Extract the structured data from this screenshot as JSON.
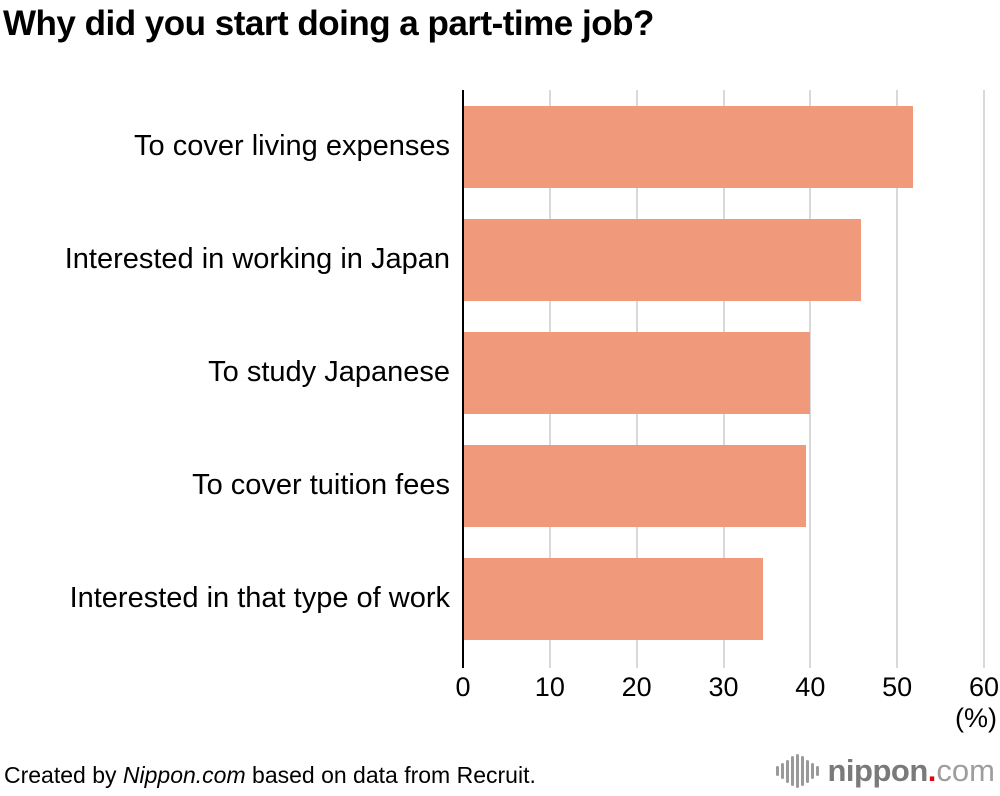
{
  "title": "Why did you start doing a part-time job?",
  "chart_data": {
    "type": "bar",
    "orientation": "horizontal",
    "title": "Why did you start doing a part-time job?",
    "categories": [
      "To cover living expenses",
      "Interested in working in Japan",
      "To study Japanese",
      "To cover tuition fees",
      "Interested in that type of work"
    ],
    "values": [
      51.8,
      45.8,
      40.0,
      39.5,
      34.5
    ],
    "xlabel": "(%)",
    "ylabel": "",
    "xlim": [
      0,
      60
    ],
    "xticks": [
      0,
      10,
      20,
      30,
      40,
      50,
      60
    ],
    "grid": true,
    "bar_color": "#F0997B",
    "gridline_color": "#d9d9d9",
    "axis_color": "#000000"
  },
  "footer": {
    "credit_prefix": "Created by ",
    "credit_source": "Nippon.com",
    "credit_suffix": " based on data from Recruit."
  },
  "logo": {
    "name": "nippon.com",
    "icon": "soundwave-icon",
    "text_main": "nippon",
    "text_dot": ".",
    "text_tld": "com",
    "color_main": "#7a7a7a",
    "color_dot": "#e60012",
    "color_tld": "#9e9e9e",
    "icon_bar_heights": [
      10,
      16,
      23,
      30,
      34,
      30,
      23,
      16,
      10
    ]
  }
}
